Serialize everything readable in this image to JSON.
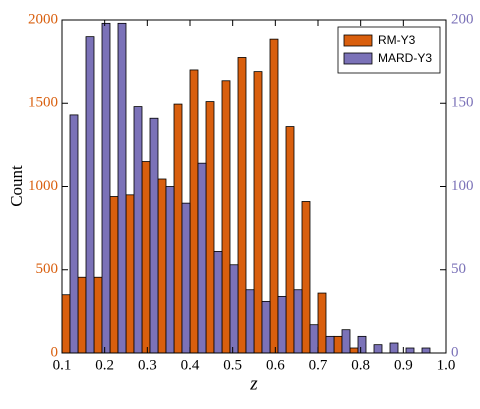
{
  "chart_data": {
    "type": "histogram",
    "x_label": "z",
    "y_label": "Count",
    "bins": [
      0.1,
      0.1375,
      0.175,
      0.2125,
      0.25,
      0.2875,
      0.325,
      0.3625,
      0.4,
      0.4375,
      0.475,
      0.5125,
      0.55,
      0.5875,
      0.625,
      0.6625,
      0.7,
      0.7375,
      0.775,
      0.8125,
      0.85,
      0.8875,
      0.925,
      0.9625,
      1.0
    ],
    "series": [
      {
        "name": "RM-Y3",
        "color": "#d95f0e",
        "axis": "y",
        "values": [
          350,
          455,
          455,
          940,
          950,
          1150,
          1045,
          1495,
          1700,
          1510,
          1635,
          1775,
          1690,
          1885,
          1360,
          910,
          360,
          100,
          30,
          0,
          0,
          0,
          0,
          0
        ]
      },
      {
        "name": "MARD-Y3",
        "color": "#7b72b8",
        "axis": "y2",
        "values": [
          143,
          190,
          198,
          198,
          148,
          141,
          100,
          90,
          114,
          61,
          53,
          38,
          31,
          34,
          38,
          17,
          10,
          14,
          10,
          5,
          6,
          3,
          3,
          0
        ]
      }
    ],
    "xlim": [
      0.1,
      1.0
    ],
    "xticks": [
      0.1,
      0.2,
      0.3,
      0.4,
      0.5,
      0.6,
      0.7,
      0.8,
      0.9,
      {
        "value": 1,
        "label": "1.0"
      }
    ],
    "ylim": [
      0,
      2000
    ],
    "yticks": [
      0,
      500,
      1000,
      1500,
      2000
    ],
    "y2lim": [
      0,
      200
    ],
    "y2ticks": [
      0,
      50,
      100,
      150,
      200
    ],
    "legend": "upper right"
  }
}
